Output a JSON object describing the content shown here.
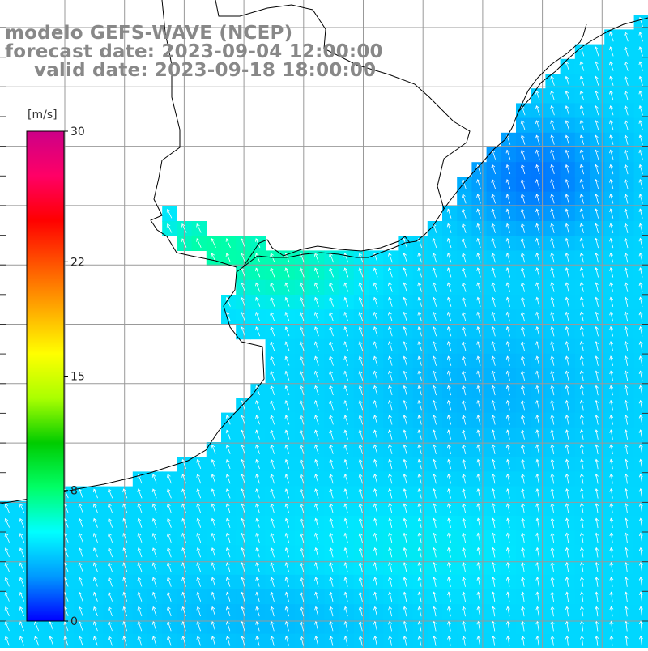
{
  "title": {
    "line1": "modelo GEFS-WAVE (NCEP)",
    "line2": "forecast date: 2023-09-04 12:00:00",
    "line3": "valid date: 2023-09-18 18:00:00"
  },
  "colorbar": {
    "unit": "[m/s]",
    "ticks": [
      {
        "value": 30,
        "label": "30"
      },
      {
        "value": 22,
        "label": "22"
      },
      {
        "value": 15,
        "label": "15"
      },
      {
        "value": 8,
        "label": "8"
      },
      {
        "value": 0,
        "label": "0"
      }
    ],
    "min": 0,
    "max": 30,
    "colors": [
      "#0000ff",
      "#0099ff",
      "#00ffff",
      "#00ff66",
      "#00cc00",
      "#aaff00",
      "#ffff00",
      "#ffaa00",
      "#ff5500",
      "#ff0000",
      "#ff0066",
      "#cc0088"
    ]
  },
  "map": {
    "field": "wind speed",
    "background_color": "#ffffff",
    "coast_color": "#000000",
    "grid_color": "#999999",
    "dominant_speed_range_ms": [
      4,
      9
    ],
    "wind_direction": "from south-southeast (arrows pointing to north-northwest)"
  }
}
